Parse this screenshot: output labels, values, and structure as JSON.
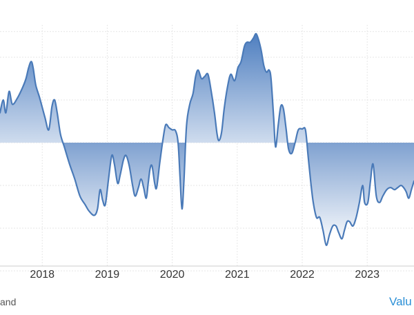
{
  "chart_data": {
    "type": "area",
    "title": "",
    "xlabel": "",
    "ylabel": "",
    "grid": true,
    "xlim": [
      2017.35,
      2023.72
    ],
    "ylim": [
      -3,
      2.6
    ],
    "baseline": 0,
    "x_ticks": [
      2018,
      2019,
      2020,
      2021,
      2022,
      2023
    ],
    "x_tick_labels": [
      "2018",
      "2019",
      "2020",
      "2021",
      "2022",
      "2023"
    ],
    "y_gridlines": [
      2.6,
      2.0,
      1.0,
      0.0,
      -1.0,
      -2.0,
      -3.0
    ],
    "colors": {
      "line": "#4a7ab8",
      "fill_dark": "#4f7fc0",
      "fill_light": "#ffffff",
      "grid": "#e6e6e6",
      "text": "#333333",
      "link": "#2a8fd6"
    },
    "series": [
      {
        "values": [
          [
            2017.35,
            0.7
          ],
          [
            2017.4,
            1.0
          ],
          [
            2017.44,
            0.7
          ],
          [
            2017.49,
            1.2
          ],
          [
            2017.54,
            0.9
          ],
          [
            2017.62,
            1.05
          ],
          [
            2017.7,
            1.3
          ],
          [
            2017.75,
            1.5
          ],
          [
            2017.79,
            1.75
          ],
          [
            2017.83,
            1.9
          ],
          [
            2017.86,
            1.75
          ],
          [
            2017.9,
            1.35
          ],
          [
            2017.96,
            1.05
          ],
          [
            2018.04,
            0.6
          ],
          [
            2018.1,
            0.3
          ],
          [
            2018.15,
            0.85
          ],
          [
            2018.19,
            1.0
          ],
          [
            2018.23,
            0.7
          ],
          [
            2018.28,
            0.2
          ],
          [
            2018.34,
            -0.1
          ],
          [
            2018.42,
            -0.5
          ],
          [
            2018.5,
            -0.85
          ],
          [
            2018.58,
            -1.25
          ],
          [
            2018.66,
            -1.45
          ],
          [
            2018.72,
            -1.6
          ],
          [
            2018.8,
            -1.7
          ],
          [
            2018.85,
            -1.55
          ],
          [
            2018.89,
            -1.1
          ],
          [
            2018.93,
            -1.35
          ],
          [
            2018.97,
            -1.45
          ],
          [
            2019.02,
            -0.85
          ],
          [
            2019.07,
            -0.3
          ],
          [
            2019.11,
            -0.5
          ],
          [
            2019.16,
            -0.95
          ],
          [
            2019.2,
            -0.75
          ],
          [
            2019.25,
            -0.4
          ],
          [
            2019.29,
            -0.3
          ],
          [
            2019.34,
            -0.55
          ],
          [
            2019.39,
            -1.0
          ],
          [
            2019.43,
            -1.25
          ],
          [
            2019.48,
            -1.05
          ],
          [
            2019.52,
            -0.85
          ],
          [
            2019.56,
            -1.05
          ],
          [
            2019.6,
            -1.3
          ],
          [
            2019.63,
            -0.95
          ],
          [
            2019.66,
            -0.6
          ],
          [
            2019.69,
            -0.55
          ],
          [
            2019.73,
            -0.95
          ],
          [
            2019.76,
            -1.05
          ],
          [
            2019.81,
            -0.45
          ],
          [
            2019.86,
            0.1
          ],
          [
            2019.9,
            0.42
          ],
          [
            2019.95,
            0.35
          ],
          [
            2020.0,
            0.3
          ],
          [
            2020.05,
            0.28
          ],
          [
            2020.09,
            0.0
          ],
          [
            2020.12,
            -0.8
          ],
          [
            2020.15,
            -1.55
          ],
          [
            2020.18,
            -0.9
          ],
          [
            2020.22,
            0.4
          ],
          [
            2020.27,
            0.9
          ],
          [
            2020.32,
            1.15
          ],
          [
            2020.36,
            1.55
          ],
          [
            2020.4,
            1.7
          ],
          [
            2020.45,
            1.5
          ],
          [
            2020.5,
            1.55
          ],
          [
            2020.55,
            1.6
          ],
          [
            2020.6,
            1.2
          ],
          [
            2020.65,
            0.7
          ],
          [
            2020.69,
            0.2
          ],
          [
            2020.72,
            0.05
          ],
          [
            2020.76,
            0.25
          ],
          [
            2020.8,
            0.8
          ],
          [
            2020.85,
            1.3
          ],
          [
            2020.9,
            1.6
          ],
          [
            2020.96,
            1.45
          ],
          [
            2021.01,
            1.75
          ],
          [
            2021.06,
            1.9
          ],
          [
            2021.11,
            2.25
          ],
          [
            2021.15,
            2.35
          ],
          [
            2021.2,
            2.35
          ],
          [
            2021.25,
            2.45
          ],
          [
            2021.29,
            2.55
          ],
          [
            2021.33,
            2.4
          ],
          [
            2021.37,
            2.15
          ],
          [
            2021.41,
            1.8
          ],
          [
            2021.45,
            1.65
          ],
          [
            2021.49,
            1.7
          ],
          [
            2021.52,
            1.5
          ],
          [
            2021.56,
            0.6
          ],
          [
            2021.59,
            -0.1
          ],
          [
            2021.63,
            0.4
          ],
          [
            2021.67,
            0.85
          ],
          [
            2021.71,
            0.8
          ],
          [
            2021.75,
            0.35
          ],
          [
            2021.79,
            -0.15
          ],
          [
            2021.84,
            -0.25
          ],
          [
            2021.89,
            0.0
          ],
          [
            2021.94,
            0.3
          ],
          [
            2022.0,
            0.32
          ],
          [
            2022.05,
            0.3
          ],
          [
            2022.09,
            -0.3
          ],
          [
            2022.13,
            -0.9
          ],
          [
            2022.17,
            -1.4
          ],
          [
            2022.22,
            -1.75
          ],
          [
            2022.27,
            -1.75
          ],
          [
            2022.32,
            -2.05
          ],
          [
            2022.37,
            -2.4
          ],
          [
            2022.42,
            -2.15
          ],
          [
            2022.47,
            -1.95
          ],
          [
            2022.52,
            -1.95
          ],
          [
            2022.56,
            -2.1
          ],
          [
            2022.61,
            -2.25
          ],
          [
            2022.65,
            -2.05
          ],
          [
            2022.69,
            -1.85
          ],
          [
            2022.73,
            -1.85
          ],
          [
            2022.78,
            -1.95
          ],
          [
            2022.83,
            -1.75
          ],
          [
            2022.88,
            -1.4
          ],
          [
            2022.93,
            -1.0
          ],
          [
            2022.96,
            -1.4
          ],
          [
            2023.01,
            -1.4
          ],
          [
            2023.05,
            -0.9
          ],
          [
            2023.09,
            -0.5
          ],
          [
            2023.14,
            -1.25
          ],
          [
            2023.19,
            -1.4
          ],
          [
            2023.24,
            -1.25
          ],
          [
            2023.3,
            -1.1
          ],
          [
            2023.36,
            -1.05
          ],
          [
            2023.42,
            -1.1
          ],
          [
            2023.47,
            -1.05
          ],
          [
            2023.52,
            -1.0
          ],
          [
            2023.56,
            -1.05
          ],
          [
            2023.6,
            -1.15
          ],
          [
            2023.64,
            -1.3
          ],
          [
            2023.68,
            -1.1
          ],
          [
            2023.72,
            -0.9
          ]
        ]
      }
    ]
  },
  "footer": {
    "source_partial": "and",
    "link_partial": "Valu"
  }
}
